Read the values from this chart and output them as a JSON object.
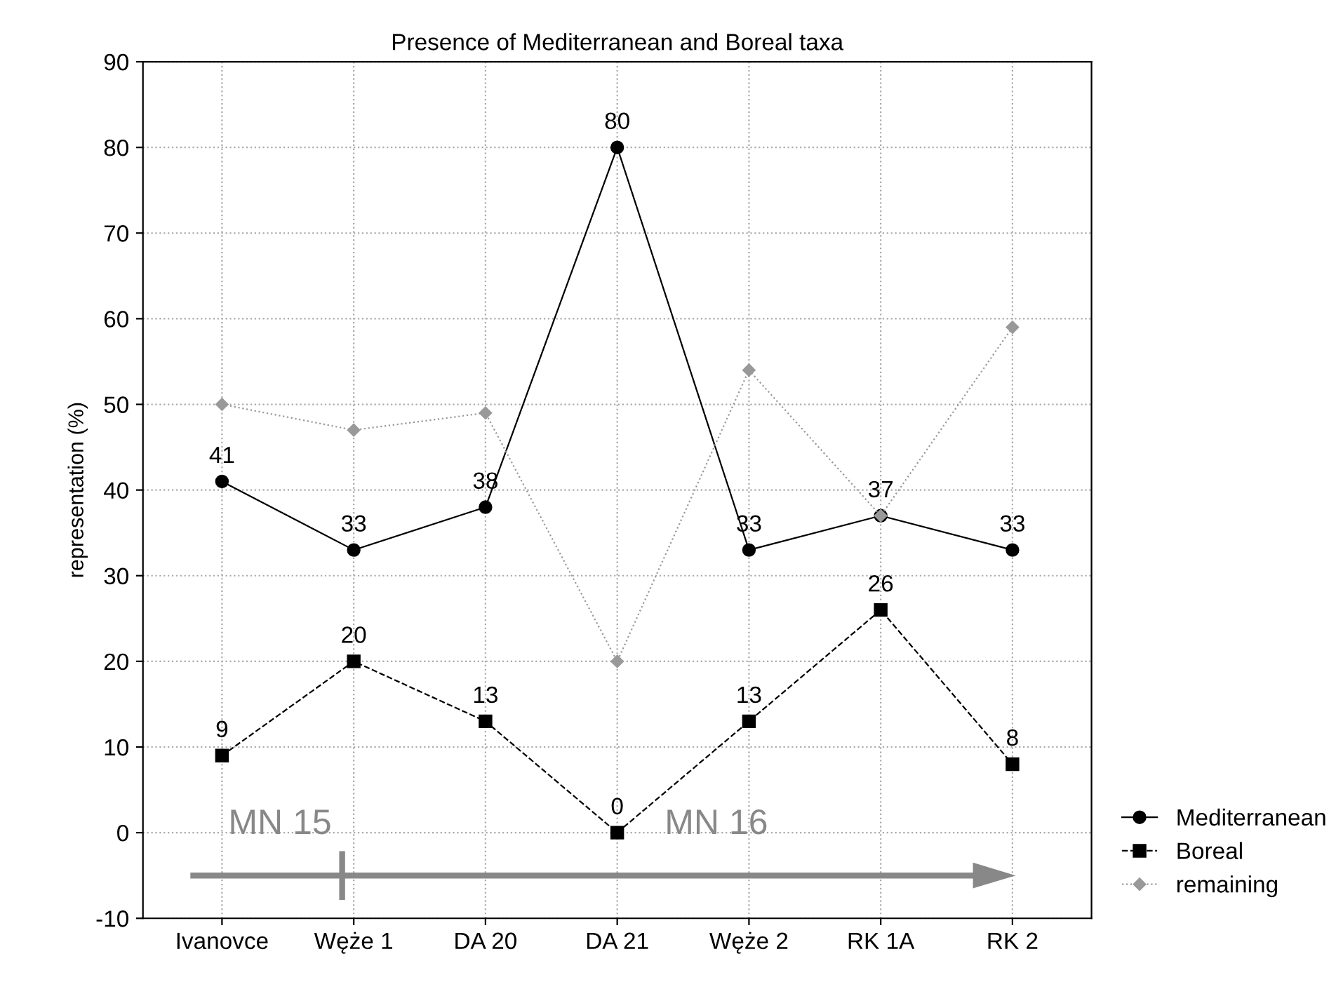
{
  "chart_data": {
    "type": "line",
    "title": "Presence of Mediterranean and Boreal taxa",
    "ylabel": "representation (%)",
    "categories": [
      "Ivanovce",
      "Węże 1",
      "DA 20",
      "DA 21",
      "Węże 2",
      "RK 1A",
      "RK 2"
    ],
    "series": [
      {
        "name": "Mediterranean",
        "color": "#000000",
        "marker": "circle",
        "line_style": "solid",
        "values": [
          41,
          33,
          38,
          80,
          33,
          37,
          33
        ],
        "value_labels": [
          "41",
          "33",
          "38",
          "80",
          "33",
          "37",
          "33"
        ]
      },
      {
        "name": "Boreal",
        "color": "#000000",
        "marker": "square",
        "line_style": "dashed",
        "values": [
          9,
          20,
          13,
          0,
          13,
          26,
          8
        ],
        "value_labels": [
          "9",
          "20",
          "13",
          "0",
          "13",
          "26",
          "8"
        ]
      },
      {
        "name": "remaining",
        "color": "#999999",
        "marker": "diamond",
        "line_style": "dotted",
        "values": [
          50,
          47,
          49,
          20,
          54,
          37,
          59
        ]
      }
    ],
    "ylim": [
      -10,
      90
    ],
    "yticks": [
      -10,
      0,
      10,
      20,
      30,
      40,
      50,
      60,
      70,
      80,
      90
    ],
    "grid": true,
    "legend": "bottom right",
    "annotations": [
      "MN 15",
      "MN 16"
    ]
  }
}
